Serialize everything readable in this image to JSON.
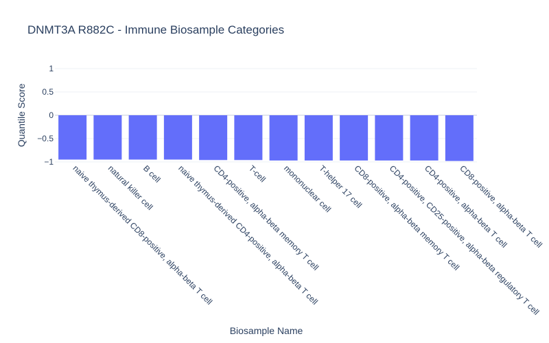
{
  "chart_data": {
    "type": "bar",
    "title": "DNMT3A R882C - Immune Biosample Categories",
    "xlabel": "Biosample Name",
    "ylabel": "Quantile Score",
    "categories": [
      "naive thymus-derived CD8-positive, alpha-beta T cell",
      "natural killer cell",
      "B cell",
      "naive thymus-derived CD4-positive, alpha-beta T cell",
      "CD4-positive, alpha-beta memory T cell",
      "T-cell",
      "mononuclear cell",
      "T-helper 17 cell",
      "CD8-positive, alpha-beta memory T cell",
      "CD4-positive, CD25-positive, alpha-beta regulatory T cell",
      "CD4-positive, alpha-beta T cell",
      "CD8-positive, alpha-beta T cell"
    ],
    "values": [
      -0.95,
      -0.95,
      -0.95,
      -0.95,
      -0.96,
      -0.96,
      -0.97,
      -0.97,
      -0.97,
      -0.97,
      -0.97,
      -0.98
    ],
    "ylim": [
      -1,
      1
    ],
    "yticks": [
      1,
      0.5,
      0,
      -0.5,
      -1
    ],
    "ytick_labels": [
      "1",
      "0.5",
      "0",
      "−0.5",
      "−1"
    ],
    "grid": true,
    "bar_color": "#636efa"
  }
}
